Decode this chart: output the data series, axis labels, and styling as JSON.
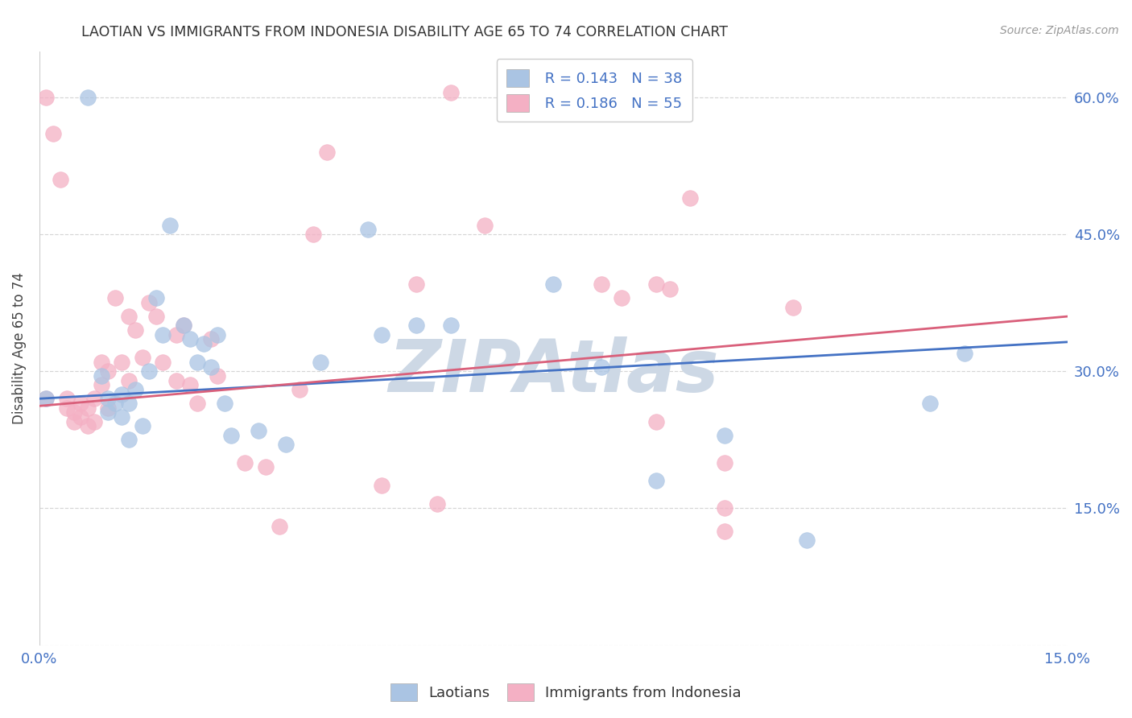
{
  "title": "LAOTIAN VS IMMIGRANTS FROM INDONESIA DISABILITY AGE 65 TO 74 CORRELATION CHART",
  "source": "Source: ZipAtlas.com",
  "ylabel": "Disability Age 65 to 74",
  "R1": 0.143,
  "N1": 38,
  "R2": 0.186,
  "N2": 55,
  "color1": "#aac4e3",
  "color2": "#f4b0c4",
  "line_color1": "#4472c4",
  "line_color2": "#d95f7a",
  "xlim": [
    0,
    0.15
  ],
  "ylim": [
    0.0,
    0.65
  ],
  "xtick_positions": [
    0.0,
    0.05,
    0.1,
    0.15
  ],
  "xtick_labels": [
    "0.0%",
    "",
    "",
    "15.0%"
  ],
  "ytick_positions": [
    0.0,
    0.15,
    0.3,
    0.45,
    0.6
  ],
  "ytick_labels": [
    "",
    "15.0%",
    "30.0%",
    "45.0%",
    "60.0%"
  ],
  "legend_label1": "Laotians",
  "legend_label2": "Immigrants from Indonesia",
  "watermark": "ZIPAtlas",
  "watermark_color": "#cdd8e5",
  "background_color": "#ffffff",
  "grid_color": "#d5d5d5",
  "blue_x": [
    0.001,
    0.007,
    0.009,
    0.01,
    0.01,
    0.011,
    0.012,
    0.012,
    0.013,
    0.013,
    0.014,
    0.015,
    0.016,
    0.017,
    0.018,
    0.019,
    0.021,
    0.022,
    0.023,
    0.024,
    0.025,
    0.026,
    0.027,
    0.028,
    0.032,
    0.036,
    0.041,
    0.05,
    0.055,
    0.06,
    0.082,
    0.09,
    0.1,
    0.112,
    0.13,
    0.135,
    0.048,
    0.075
  ],
  "blue_y": [
    0.27,
    0.6,
    0.295,
    0.27,
    0.255,
    0.265,
    0.25,
    0.275,
    0.225,
    0.265,
    0.28,
    0.24,
    0.3,
    0.38,
    0.34,
    0.46,
    0.35,
    0.335,
    0.31,
    0.33,
    0.305,
    0.34,
    0.265,
    0.23,
    0.235,
    0.22,
    0.31,
    0.34,
    0.35,
    0.35,
    0.305,
    0.18,
    0.23,
    0.115,
    0.265,
    0.32,
    0.455,
    0.395
  ],
  "pink_x": [
    0.001,
    0.001,
    0.002,
    0.003,
    0.004,
    0.004,
    0.005,
    0.005,
    0.006,
    0.006,
    0.007,
    0.007,
    0.008,
    0.008,
    0.009,
    0.009,
    0.01,
    0.01,
    0.011,
    0.012,
    0.013,
    0.013,
    0.014,
    0.015,
    0.016,
    0.017,
    0.018,
    0.02,
    0.02,
    0.021,
    0.022,
    0.023,
    0.025,
    0.026,
    0.03,
    0.033,
    0.035,
    0.038,
    0.04,
    0.042,
    0.05,
    0.055,
    0.058,
    0.06,
    0.065,
    0.082,
    0.085,
    0.09,
    0.095,
    0.1,
    0.09,
    0.092,
    0.1,
    0.1,
    0.11
  ],
  "pink_y": [
    0.27,
    0.6,
    0.56,
    0.51,
    0.27,
    0.26,
    0.245,
    0.255,
    0.25,
    0.265,
    0.24,
    0.26,
    0.245,
    0.27,
    0.285,
    0.31,
    0.26,
    0.3,
    0.38,
    0.31,
    0.36,
    0.29,
    0.345,
    0.315,
    0.375,
    0.36,
    0.31,
    0.29,
    0.34,
    0.35,
    0.285,
    0.265,
    0.335,
    0.295,
    0.2,
    0.195,
    0.13,
    0.28,
    0.45,
    0.54,
    0.175,
    0.395,
    0.155,
    0.605,
    0.46,
    0.395,
    0.38,
    0.245,
    0.49,
    0.2,
    0.395,
    0.39,
    0.15,
    0.125,
    0.37
  ]
}
